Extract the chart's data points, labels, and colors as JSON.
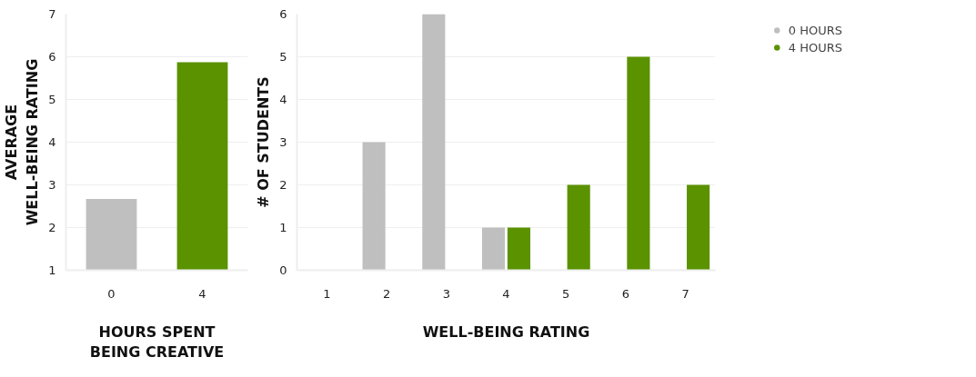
{
  "chart_data": [
    {
      "type": "bar",
      "categories": [
        "0",
        "4"
      ],
      "values": [
        2.67,
        5.87
      ],
      "colors": [
        "#bfbfbf",
        "#5a9200"
      ],
      "xlabel": "HOURS SPENT\nBEING CREATIVE",
      "ylabel": "AVERAGE\nWELL-BEING RATING",
      "ylim": [
        1,
        7
      ],
      "yticks": [
        1,
        2,
        3,
        4,
        5,
        6,
        7
      ],
      "grid": "y"
    },
    {
      "type": "bar",
      "categories": [
        "1",
        "2",
        "3",
        "4",
        "5",
        "6",
        "7"
      ],
      "xlabel": "WELL-BEING RATING",
      "ylabel": "# OF STUDENTS",
      "ylim": [
        0,
        6
      ],
      "yticks": [
        0,
        1,
        2,
        3,
        4,
        5,
        6
      ],
      "grid": "y",
      "legend": "top right",
      "series": [
        {
          "name": "0 HOURS",
          "color": "#bfbfbf",
          "values": [
            0,
            3,
            6,
            1,
            0,
            0,
            0
          ]
        },
        {
          "name": "4 HOURS",
          "color": "#5a9200",
          "values": [
            0,
            0,
            0,
            1,
            2,
            5,
            2
          ]
        }
      ]
    }
  ]
}
